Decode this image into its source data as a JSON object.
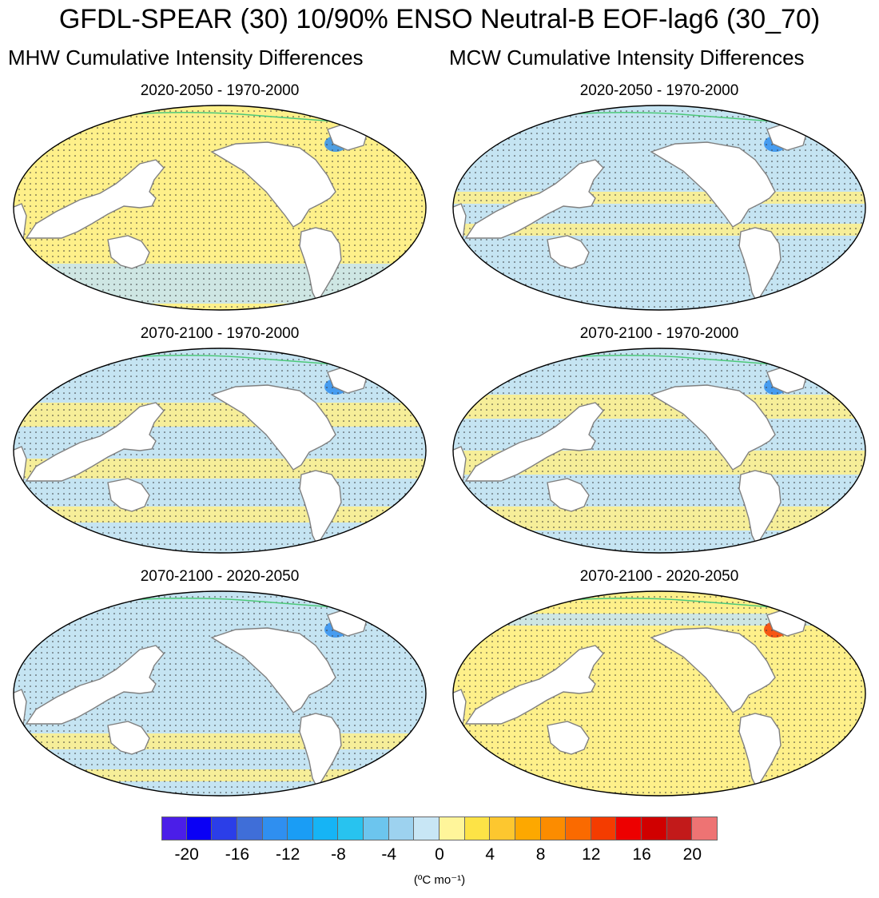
{
  "figure_title": "GFDL-SPEAR (30) 10/90% ENSO Neutral-B EOF-lag6 (30_70)",
  "columns": {
    "left": "MHW Cumulative Intensity Differences",
    "right": "MCW Cumulative Intensity Differences"
  },
  "panels": [
    {
      "title": "2020-2050 - 1970-2000",
      "column": "MHW",
      "dominant_fill": "positive (0 to 4)",
      "base_color": "#fef08a"
    },
    {
      "title": "2020-2050 - 1970-2000",
      "column": "MCW",
      "dominant_fill": "negative (-4 to 0)",
      "base_color": "#c5e4f2"
    },
    {
      "title": "2070-2100 - 1970-2000",
      "column": "MHW",
      "dominant_fill": "mixed",
      "base_color": "#c5e4f2"
    },
    {
      "title": "2070-2100 - 1970-2000",
      "column": "MCW",
      "dominant_fill": "mixed",
      "base_color": "#c5e4f2"
    },
    {
      "title": "2070-2100 - 2020-2050",
      "column": "MHW",
      "dominant_fill": "negative (-4 to 0)",
      "base_color": "#c5e4f2"
    },
    {
      "title": "2070-2100 - 2020-2050",
      "column": "MCW",
      "dominant_fill": "positive (0 to 4)",
      "base_color": "#fef08a"
    }
  ],
  "colorbar": {
    "colors": [
      "#4b1ee8",
      "#0a00f5",
      "#2b3ee8",
      "#3f6ed8",
      "#2f8ff0",
      "#1a9df5",
      "#16b4f5",
      "#28c3ef",
      "#6cc5ee",
      "#9dd2ef",
      "#c8e6f5",
      "#fff59a",
      "#fde346",
      "#fdc72f",
      "#fda800",
      "#fc8c00",
      "#fa6a00",
      "#f43c00",
      "#ed0000",
      "#d00000",
      "#c21a1a",
      "#ee7373"
    ],
    "tick_labels": [
      "-20",
      "-16",
      "-12",
      "-8",
      "-4",
      "0",
      "4",
      "8",
      "12",
      "16",
      "20"
    ],
    "units": "(ºC mo⁻¹)"
  },
  "colors": {
    "positive_fill": "#fef08a",
    "negative_fill": "#c5e4f2",
    "coastline": "#808080",
    "land": "#ffffff",
    "contour": "#4dc97a"
  }
}
